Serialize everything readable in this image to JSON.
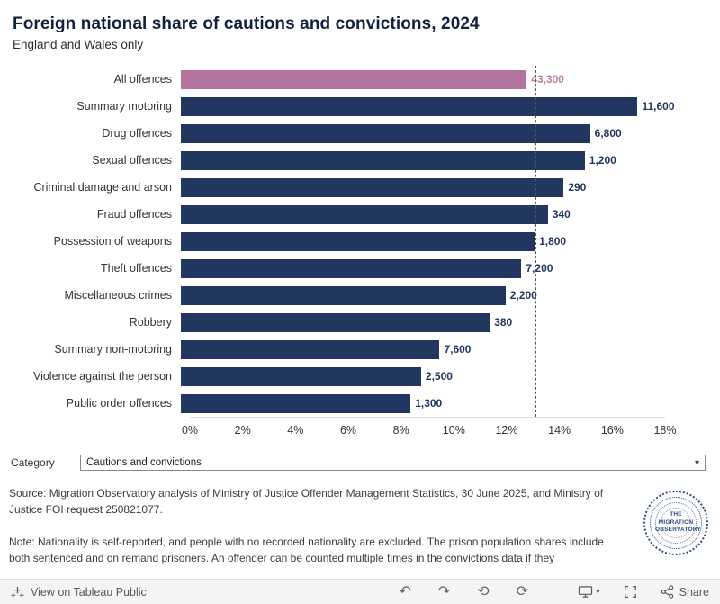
{
  "colors": {
    "bar": "#21375f",
    "highlight_bar": "#b2739c",
    "value": "#21375f",
    "highlight_value": "#bc7fa4",
    "reference_line": "#555555"
  },
  "chart_data": {
    "type": "bar",
    "orientation": "horizontal",
    "title": "Foreign national share of cautions and convictions, 2024",
    "subtitle": "England and Wales only",
    "categories": [
      "All offences",
      "Summary motoring",
      "Drug offences",
      "Sexual offences",
      "Criminal damage and arson",
      "Fraud offences",
      "Possession of weapons",
      "Theft offences",
      "Miscellaneous crimes",
      "Robbery",
      "Summary non-motoring",
      "Violence against the person",
      "Public order offences"
    ],
    "values": [
      13.1,
      17.3,
      15.5,
      15.3,
      14.5,
      13.9,
      13.4,
      12.9,
      12.3,
      11.7,
      9.8,
      9.1,
      8.7
    ],
    "value_labels": [
      "43,300",
      "11,600",
      "6,800",
      "1,200",
      "290",
      "340",
      "1,800",
      "7,200",
      "2,200",
      "380",
      "7,600",
      "2,500",
      "1,300"
    ],
    "highlight_index": 0,
    "xlabel": "",
    "ylabel": "",
    "xlim": [
      0,
      18
    ],
    "x_ticks": [
      "0%",
      "2%",
      "4%",
      "6%",
      "8%",
      "10%",
      "12%",
      "14%",
      "16%",
      "18%"
    ],
    "x_tick_values": [
      0,
      2,
      4,
      6,
      8,
      10,
      12,
      14,
      16,
      18
    ],
    "reference_line": 13.1,
    "grid": false,
    "legend": "none"
  },
  "filter": {
    "label": "Category",
    "value": "Cautions and convictions"
  },
  "caption": {
    "source": "Source: Migration Observatory analysis of Ministry of Justice Offender Management Statistics, 30 June 2025, and Ministry of Justice FOI request 250821077.",
    "note": "Note: Nationality is self-reported, and people with no recorded nationality are excluded. The prison population shares include both sentenced and on remand prisoners. An offender can be counted multiple times in the convictions data if they"
  },
  "logo": {
    "text": "THE MIGRATION OBSERVATORY"
  },
  "footer": {
    "view_label": "View on Tableau Public",
    "share_label": "Share"
  }
}
